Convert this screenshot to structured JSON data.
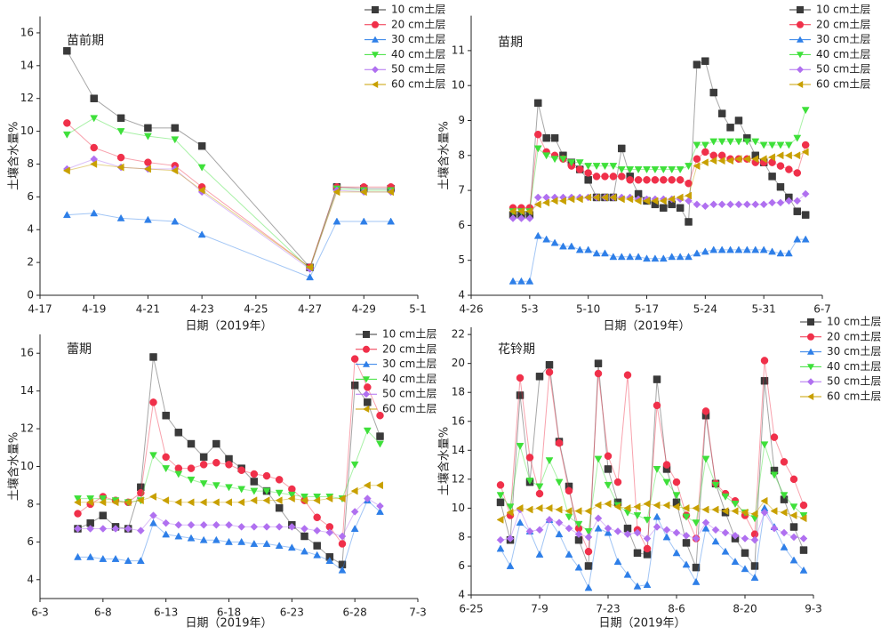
{
  "chart_data": [
    {
      "type": "line",
      "title": "苗前期",
      "x_label": "日期（2019年）",
      "y_label": "土壤含水量%",
      "legend": "upper right",
      "x": [
        "4-18",
        "4-19",
        "4-20",
        "4-21",
        "4-22",
        "4-23",
        "4-27",
        "4-28",
        "4-29",
        "4-30"
      ],
      "xlim": [
        "4-17",
        "5-1"
      ],
      "xticks": [
        "4-17",
        "4-19",
        "4-21",
        "4-23",
        "4-25",
        "4-27",
        "4-29",
        "5-1"
      ],
      "ylim": [
        0,
        17
      ],
      "yticks": [
        0,
        2,
        4,
        6,
        8,
        10,
        12,
        14,
        16
      ],
      "series": [
        {
          "name": "10 cm土层",
          "color": "#3a3a3a",
          "marker": "square",
          "values": [
            14.9,
            12.0,
            10.8,
            10.2,
            10.2,
            9.1,
            1.7,
            6.6,
            6.5,
            6.5
          ]
        },
        {
          "name": "20 cm土层",
          "color": "#f0304a",
          "marker": "circle",
          "values": [
            10.5,
            9.0,
            8.4,
            8.1,
            7.9,
            6.6,
            1.7,
            6.6,
            6.6,
            6.6
          ]
        },
        {
          "name": "30 cm土层",
          "color": "#2e7fe8",
          "marker": "triangle-up",
          "values": [
            4.9,
            5.0,
            4.7,
            4.6,
            4.5,
            3.7,
            1.1,
            4.5,
            4.5,
            4.5
          ]
        },
        {
          "name": "40 cm土层",
          "color": "#3ee03a",
          "marker": "triangle-down",
          "values": [
            9.8,
            10.8,
            10.0,
            9.7,
            9.5,
            7.8,
            1.6,
            6.5,
            6.4,
            6.4
          ]
        },
        {
          "name": "50 cm土层",
          "color": "#b070f0",
          "marker": "diamond",
          "values": [
            7.7,
            8.3,
            7.8,
            7.7,
            7.7,
            6.3,
            1.6,
            6.4,
            6.3,
            6.3
          ]
        },
        {
          "name": "60 cm土层",
          "color": "#c8a000",
          "marker": "triangle-left",
          "values": [
            7.6,
            8.0,
            7.8,
            7.7,
            7.6,
            6.4,
            1.7,
            6.3,
            6.3,
            6.3
          ]
        }
      ]
    },
    {
      "type": "line",
      "title": "苗期",
      "x_label": "日期（2019年）",
      "y_label": "土壤含水量%",
      "legend": "upper right",
      "x": [
        "5-1",
        "5-2",
        "5-3",
        "5-4",
        "5-5",
        "5-6",
        "5-7",
        "5-8",
        "5-9",
        "5-10",
        "5-11",
        "5-12",
        "5-13",
        "5-14",
        "5-15",
        "5-16",
        "5-17",
        "5-18",
        "5-19",
        "5-20",
        "5-21",
        "5-22",
        "5-23",
        "5-24",
        "5-25",
        "5-26",
        "5-27",
        "5-28",
        "5-29",
        "5-30",
        "5-31",
        "6-1",
        "6-2",
        "6-3",
        "6-4",
        "6-5"
      ],
      "xlim": [
        "4-26",
        "6-7"
      ],
      "xticks": [
        "4-26",
        "5-3",
        "5-10",
        "5-17",
        "5-24",
        "5-31",
        "6-7"
      ],
      "ylim": [
        4,
        12
      ],
      "yticks": [
        4,
        5,
        6,
        7,
        8,
        9,
        10,
        11
      ],
      "series": [
        {
          "name": "10 cm土层",
          "color": "#3a3a3a",
          "marker": "square",
          "values": [
            6.3,
            6.3,
            6.3,
            9.5,
            8.5,
            8.5,
            8.0,
            7.8,
            7.6,
            7.3,
            6.8,
            6.8,
            6.8,
            8.2,
            7.4,
            6.9,
            6.7,
            6.6,
            6.5,
            6.6,
            6.5,
            6.1,
            10.6,
            10.7,
            9.8,
            9.2,
            8.8,
            9.0,
            8.5,
            8.0,
            7.8,
            7.4,
            7.1,
            6.8,
            6.4,
            6.3
          ]
        },
        {
          "name": "20 cm土层",
          "color": "#f0304a",
          "marker": "circle",
          "values": [
            6.5,
            6.5,
            6.5,
            8.6,
            8.1,
            8.0,
            7.9,
            7.7,
            7.6,
            7.5,
            7.4,
            7.4,
            7.4,
            7.4,
            7.3,
            7.3,
            7.3,
            7.3,
            7.3,
            7.3,
            7.3,
            7.2,
            7.9,
            8.1,
            8.0,
            8.0,
            7.9,
            7.9,
            7.9,
            7.8,
            7.8,
            7.8,
            7.7,
            7.6,
            7.5,
            8.3
          ]
        },
        {
          "name": "30 cm土层",
          "color": "#2e7fe8",
          "marker": "triangle-up",
          "values": [
            4.4,
            4.4,
            4.4,
            5.7,
            5.6,
            5.5,
            5.4,
            5.4,
            5.3,
            5.3,
            5.2,
            5.2,
            5.1,
            5.1,
            5.1,
            5.1,
            5.05,
            5.05,
            5.05,
            5.1,
            5.1,
            5.1,
            5.2,
            5.25,
            5.3,
            5.3,
            5.3,
            5.3,
            5.3,
            5.3,
            5.3,
            5.25,
            5.2,
            5.2,
            5.6,
            5.6
          ]
        },
        {
          "name": "40 cm土层",
          "color": "#3ee03a",
          "marker": "triangle-down",
          "values": [
            6.4,
            6.4,
            6.4,
            8.2,
            8.0,
            7.9,
            7.9,
            7.8,
            7.8,
            7.7,
            7.7,
            7.7,
            7.7,
            7.6,
            7.6,
            7.6,
            7.6,
            7.6,
            7.6,
            7.6,
            7.6,
            7.7,
            8.3,
            8.3,
            8.4,
            8.4,
            8.4,
            8.4,
            8.4,
            8.4,
            8.3,
            8.3,
            8.3,
            8.3,
            8.5,
            9.3
          ]
        },
        {
          "name": "50 cm土层",
          "color": "#b070f0",
          "marker": "diamond",
          "values": [
            6.2,
            6.2,
            6.2,
            6.8,
            6.8,
            6.8,
            6.8,
            6.8,
            6.8,
            6.8,
            6.8,
            6.8,
            6.8,
            6.8,
            6.8,
            6.75,
            6.75,
            6.75,
            6.75,
            6.75,
            6.75,
            6.7,
            6.6,
            6.55,
            6.6,
            6.6,
            6.6,
            6.6,
            6.6,
            6.6,
            6.6,
            6.65,
            6.65,
            6.7,
            6.7,
            6.9
          ]
        },
        {
          "name": "60 cm土层",
          "color": "#c8a000",
          "marker": "triangle-left",
          "values": [
            6.4,
            6.4,
            6.4,
            6.6,
            6.65,
            6.7,
            6.7,
            6.75,
            6.75,
            6.8,
            6.8,
            6.8,
            6.8,
            6.75,
            6.75,
            6.7,
            6.7,
            6.7,
            6.7,
            6.75,
            6.8,
            6.85,
            7.7,
            7.8,
            7.85,
            7.85,
            7.85,
            7.9,
            7.9,
            7.9,
            7.9,
            7.95,
            8.0,
            8.0,
            8.0,
            8.1
          ]
        }
      ]
    },
    {
      "type": "line",
      "title": "蕾期",
      "x_label": "日期（2019年）",
      "y_label": "土壤含水量%",
      "legend": "upper right",
      "x": [
        "6-6",
        "6-7",
        "6-8",
        "6-9",
        "6-10",
        "6-11",
        "6-12",
        "6-13",
        "6-14",
        "6-15",
        "6-16",
        "6-17",
        "6-18",
        "6-19",
        "6-20",
        "6-21",
        "6-22",
        "6-23",
        "6-24",
        "6-25",
        "6-26",
        "6-27",
        "6-28",
        "6-29",
        "6-30"
      ],
      "xlim": [
        "6-3",
        "7-3"
      ],
      "xticks": [
        "6-3",
        "6-8",
        "6-13",
        "6-18",
        "6-23",
        "6-28",
        "7-3"
      ],
      "ylim": [
        3,
        17
      ],
      "yticks": [
        4,
        6,
        8,
        10,
        12,
        14,
        16
      ],
      "series": [
        {
          "name": "10 cm土层",
          "color": "#3a3a3a",
          "marker": "square",
          "values": [
            6.7,
            7.0,
            7.4,
            6.8,
            6.7,
            8.9,
            15.8,
            12.7,
            11.8,
            11.2,
            10.5,
            11.2,
            10.4,
            9.9,
            9.2,
            8.7,
            7.8,
            6.9,
            6.3,
            5.8,
            5.2,
            4.8,
            14.3,
            13.4,
            11.6
          ]
        },
        {
          "name": "20 cm土层",
          "color": "#f0304a",
          "marker": "circle",
          "values": [
            7.5,
            8.0,
            8.4,
            8.2,
            8.1,
            8.6,
            13.4,
            10.5,
            9.9,
            9.9,
            10.1,
            10.2,
            10.1,
            9.8,
            9.6,
            9.5,
            9.3,
            8.8,
            8.2,
            7.3,
            6.8,
            5.9,
            15.7,
            14.2,
            12.7
          ]
        },
        {
          "name": "30 cm土层",
          "color": "#2e7fe8",
          "marker": "triangle-up",
          "values": [
            5.2,
            5.2,
            5.1,
            5.1,
            5.0,
            5.0,
            7.0,
            6.4,
            6.3,
            6.2,
            6.1,
            6.1,
            6.0,
            6.0,
            5.9,
            5.9,
            5.8,
            5.7,
            5.5,
            5.3,
            5.0,
            4.5,
            6.7,
            8.2,
            7.6
          ]
        },
        {
          "name": "40 cm土层",
          "color": "#3ee03a",
          "marker": "triangle-down",
          "values": [
            8.3,
            8.3,
            8.3,
            8.2,
            8.1,
            8.2,
            10.6,
            9.9,
            9.6,
            9.3,
            9.1,
            9.0,
            8.9,
            8.8,
            8.7,
            8.7,
            8.6,
            8.5,
            8.4,
            8.4,
            8.4,
            8.3,
            10.1,
            11.9,
            11.2
          ]
        },
        {
          "name": "50 cm土层",
          "color": "#b070f0",
          "marker": "diamond",
          "values": [
            6.7,
            6.7,
            6.7,
            6.7,
            6.7,
            6.6,
            7.4,
            7.0,
            6.9,
            6.9,
            6.9,
            6.9,
            6.9,
            6.8,
            6.8,
            6.8,
            6.8,
            6.8,
            6.7,
            6.6,
            6.5,
            6.3,
            7.6,
            8.3,
            7.9
          ]
        },
        {
          "name": "60 cm土层",
          "color": "#c8a000",
          "marker": "triangle-left",
          "values": [
            8.1,
            8.1,
            8.1,
            8.1,
            8.1,
            8.2,
            8.4,
            8.2,
            8.1,
            8.1,
            8.1,
            8.1,
            8.1,
            8.1,
            8.2,
            8.2,
            8.2,
            8.3,
            8.2,
            8.2,
            8.3,
            8.3,
            8.7,
            9.0,
            9.0
          ]
        }
      ]
    },
    {
      "type": "line",
      "title": "花铃期",
      "x_label": "日期（2019年）",
      "y_label": "土壤含水量%",
      "legend": "upper right",
      "x": [
        "7-1",
        "7-3",
        "7-5",
        "7-7",
        "7-9",
        "7-11",
        "7-13",
        "7-15",
        "7-17",
        "7-19",
        "7-21",
        "7-23",
        "7-25",
        "7-27",
        "7-29",
        "7-31",
        "8-2",
        "8-4",
        "8-6",
        "8-8",
        "8-10",
        "8-12",
        "8-14",
        "8-16",
        "8-18",
        "8-20",
        "8-22",
        "8-24",
        "8-26",
        "8-28",
        "8-30",
        "9-1"
      ],
      "xlim": [
        "6-25",
        "9-3"
      ],
      "xticks": [
        "6-25",
        "7-9",
        "7-23",
        "8-6",
        "8-20",
        "9-3"
      ],
      "ylim": [
        4,
        22.5
      ],
      "yticks": [
        4,
        6,
        8,
        10,
        12,
        14,
        16,
        18,
        20,
        22
      ],
      "series": [
        {
          "name": "10 cm土层",
          "color": "#3a3a3a",
          "marker": "square",
          "values": [
            10.4,
            7.8,
            17.8,
            11.8,
            19.1,
            19.9,
            14.6,
            11.5,
            7.8,
            6.0,
            20.0,
            12.7,
            10.4,
            8.6,
            6.9,
            6.8,
            18.9,
            12.7,
            10.4,
            7.6,
            5.9,
            16.4,
            11.7,
            9.7,
            7.9,
            6.9,
            6.0,
            18.8,
            12.6,
            10.6,
            8.7,
            7.1
          ]
        },
        {
          "name": "20 cm土层",
          "color": "#f0304a",
          "marker": "circle",
          "values": [
            11.6,
            9.5,
            19.0,
            13.5,
            11.0,
            19.4,
            14.5,
            11.2,
            8.6,
            7.0,
            19.3,
            13.6,
            11.8,
            19.2,
            8.5,
            7.2,
            17.1,
            13.0,
            11.8,
            9.5,
            7.9,
            16.7,
            11.7,
            11.0,
            10.5,
            9.5,
            8.2,
            20.2,
            14.9,
            13.2,
            12.0,
            10.2
          ]
        },
        {
          "name": "30 cm土层",
          "color": "#2e7fe8",
          "marker": "triangle-up",
          "values": [
            7.2,
            6.0,
            9.0,
            8.4,
            6.8,
            9.2,
            8.2,
            6.8,
            5.9,
            4.5,
            8.6,
            8.3,
            6.3,
            5.4,
            4.6,
            4.7,
            9.4,
            8.0,
            6.9,
            6.1,
            4.9,
            8.6,
            7.7,
            7.0,
            6.3,
            5.8,
            5.2,
            10.0,
            8.7,
            7.3,
            6.4,
            5.7
          ]
        },
        {
          "name": "40 cm土层",
          "color": "#3ee03a",
          "marker": "triangle-down",
          "values": [
            10.9,
            10.1,
            14.3,
            11.9,
            11.5,
            13.3,
            11.8,
            9.4,
            8.9,
            8.4,
            13.4,
            11.6,
            10.2,
            9.7,
            9.5,
            9.2,
            12.7,
            11.8,
            10.9,
            9.4,
            9.0,
            13.4,
            11.6,
            10.8,
            10.3,
            9.7,
            9.3,
            14.4,
            12.3,
            10.9,
            10.1,
            9.5
          ]
        },
        {
          "name": "50 cm土层",
          "color": "#b070f0",
          "marker": "diamond",
          "values": [
            7.8,
            7.9,
            9.9,
            8.4,
            8.5,
            9.2,
            9.0,
            8.6,
            8.2,
            8.0,
            9.3,
            8.6,
            8.4,
            8.2,
            8.3,
            7.9,
            8.7,
            8.5,
            8.3,
            8.1,
            7.9,
            9.0,
            8.5,
            8.3,
            8.1,
            7.9,
            7.8,
            9.7,
            8.6,
            8.3,
            8.0,
            7.9
          ]
        },
        {
          "name": "60 cm土层",
          "color": "#c8a000",
          "marker": "triangle-left",
          "values": [
            9.2,
            9.7,
            10.0,
            9.9,
            10.0,
            10.0,
            9.9,
            9.8,
            9.8,
            9.8,
            10.2,
            10.3,
            10.1,
            10.0,
            10.1,
            10.3,
            10.2,
            10.2,
            10.1,
            10.0,
            10.0,
            9.9,
            9.9,
            9.8,
            9.8,
            9.7,
            9.6,
            10.5,
            9.8,
            9.7,
            9.5,
            9.3
          ]
        }
      ]
    }
  ]
}
